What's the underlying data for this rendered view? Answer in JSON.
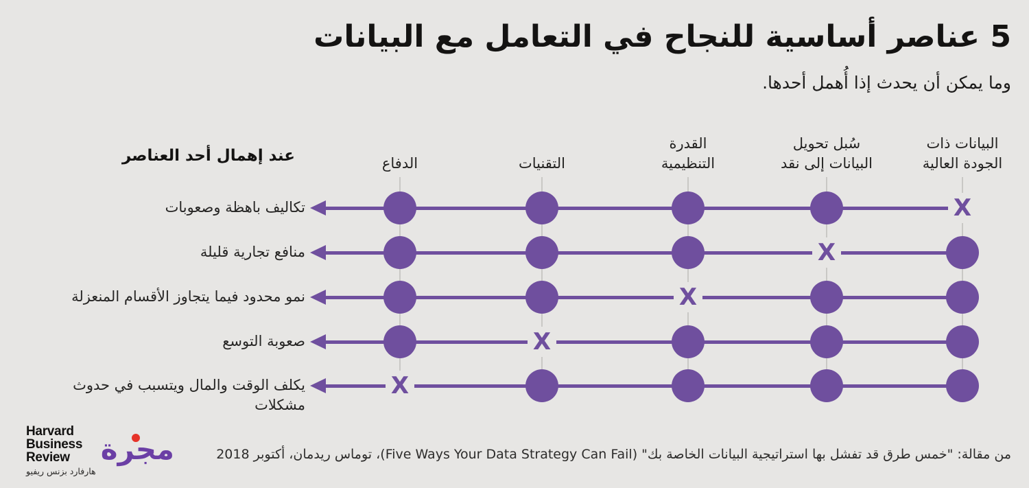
{
  "title": "5 عناصر أساسية للنجاح في التعامل مع البيانات",
  "subtitle": "وما يمكن أن يحدث إذا أُهمل أحدها.",
  "row_header": "عند إهمال أحد العناصر",
  "chart_data": {
    "type": "table",
    "note": "Matrix infographic: 5 data-success elements as columns (right-to-left); each consequence row marks the neglected element with an X, all other elements with a filled dot; a purple arrow points left from each row toward its consequence label.",
    "columns": [
      "البيانات ذات\nالجودة العالية",
      "سُبل تحويل\nالبيانات إلى نقد",
      "القدرة\nالتنظيمية",
      "التقنيات",
      "الدفاع"
    ],
    "rows": [
      {
        "label": "تكاليف باهظة وصعوبات",
        "neglected_column": 0
      },
      {
        "label": "منافع تجارية قليلة",
        "neglected_column": 1
      },
      {
        "label": "نمو محدود فيما يتجاوز الأقسام المنعزلة",
        "neglected_column": 2
      },
      {
        "label": "صعوبة التوسع",
        "neglected_column": 3
      },
      {
        "label": "يكلف الوقت والمال ويتسبب في حدوث\nمشكلات",
        "neglected_column": 4
      }
    ],
    "marker_neglected": "X",
    "marker_present": "dot",
    "legend_position": "none",
    "grid": "vertical-guides"
  },
  "footer": {
    "hbr_logo_lines": [
      "Harvard",
      "Business",
      "Review"
    ],
    "hbr_logo_arabic": "هارفارد بزنس ريفيو",
    "majarra_logo_text": "مجرة",
    "source": "من مقالة: \"خمس طرق قد تفشل بها استراتيجية البيانات الخاصة بك\" (Five Ways Your Data Strategy Can Fail)، توماس ريدمان، أكتوبر 2018"
  },
  "colors": {
    "purple": "#6F4F9E",
    "background": "#E7E6E4",
    "guide_line": "#C9C8C5",
    "majarra_purple": "#6B3FA5",
    "red_dot": "#E63329",
    "text": "#1F1E1D"
  }
}
